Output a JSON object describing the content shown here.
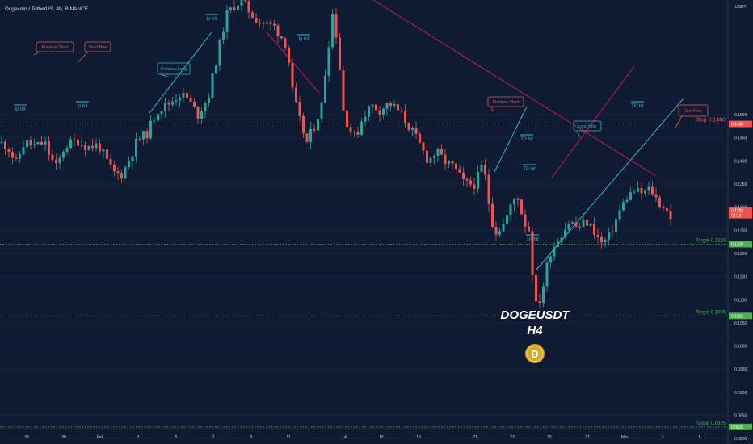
{
  "header": {
    "title": "Dogecoin / TetherUS, 4h, BINANCE",
    "axis_unit": "USDT"
  },
  "overlay": {
    "symbol": "DOGEUSDT",
    "timeframe": "H4",
    "coin_glyph": "Ð"
  },
  "colors": {
    "background": "#0f1b33",
    "up": "#26a69a",
    "down": "#ef5350",
    "trendline_teal": "#2bbcc4",
    "trendline_pink": "#c2185b",
    "stop": "#ef5350",
    "target": "#4caf50",
    "coin": "#d4a82a",
    "text": "#ffffff",
    "axis_text": "#cccccc"
  },
  "chart_data": {
    "type": "candlestick",
    "title": "Dogecoin / TetherUS, 4h, BINANCE",
    "y_unit": "USDT",
    "ylim": [
      0.0788,
      0.1748
    ],
    "y_ticks": [
      "0.1500",
      "0.1450",
      "0.1400",
      "0.1350",
      "0.1300",
      "0.1250",
      "0.1200",
      "0.1150",
      "0.1100",
      "0.1050",
      "0.1000",
      "0.0950",
      "0.0900",
      "0.0850",
      "0.0800"
    ],
    "x_ticks": [
      "28",
      "30",
      "Feb",
      "3",
      "5",
      "7",
      "9",
      "11",
      "14",
      "16",
      "18",
      "21",
      "23",
      "25",
      "27",
      "Mar",
      "3",
      "5"
    ],
    "price_levels": [
      {
        "name": "Stop",
        "label": "Stop 0.1480",
        "tag": "0.1480",
        "value": 0.148,
        "kind": "stop"
      },
      {
        "name": "Target",
        "label": "Target 0.1220",
        "tag": "0.1220",
        "value": 0.122,
        "kind": "target"
      },
      {
        "name": "Target",
        "label": "Target 0.1065",
        "tag": "0.1065",
        "value": 0.1065,
        "kind": "target"
      },
      {
        "name": "Target",
        "label": "Target 0.0825",
        "tag": "0.0825",
        "value": 0.0825,
        "kind": "target"
      }
    ],
    "current_price": {
      "value": 0.1293,
      "tag": "0.1293",
      "countdown": "02:13"
    },
    "annotations": [
      {
        "text": "Previous Short",
        "style": "short"
      },
      {
        "text": "Short Now",
        "style": "short"
      },
      {
        "text": "Previous Long",
        "style": "long"
      },
      {
        "text": "Previous Short",
        "style": "short"
      },
      {
        "text": "Long Now",
        "style": "long"
      },
      {
        "text": "Sort Now",
        "style": "short"
      }
    ],
    "tp_labels": [
      "tp hit",
      "tp hit",
      "tp hit",
      "tp hit",
      "TP hit",
      "TP hit",
      "TP hit",
      "TP hit"
    ],
    "anchors": [
      [
        0,
        0.144
      ],
      [
        10,
        0.143
      ],
      [
        20,
        0.1395
      ],
      [
        30,
        0.144
      ],
      [
        45,
        0.1432
      ],
      [
        55,
        0.144
      ],
      [
        62,
        0.141
      ],
      [
        70,
        0.1385
      ],
      [
        80,
        0.1432
      ],
      [
        95,
        0.1445
      ],
      [
        108,
        0.143
      ],
      [
        122,
        0.1435
      ],
      [
        132,
        0.14
      ],
      [
        140,
        0.1375
      ],
      [
        150,
        0.137
      ],
      [
        158,
        0.1395
      ],
      [
        170,
        0.1445
      ],
      [
        182,
        0.146
      ],
      [
        195,
        0.151
      ],
      [
        210,
        0.1525
      ],
      [
        222,
        0.1545
      ],
      [
        232,
        0.1535
      ],
      [
        245,
        0.15
      ],
      [
        258,
        0.154
      ],
      [
        268,
        0.162
      ],
      [
        280,
        0.1715
      ],
      [
        292,
        0.174
      ],
      [
        300,
        0.1745
      ],
      [
        310,
        0.172
      ],
      [
        322,
        0.17
      ],
      [
        340,
        0.169
      ],
      [
        355,
        0.165
      ],
      [
        362,
        0.155
      ],
      [
        372,
        0.148
      ],
      [
        380,
        0.144
      ],
      [
        390,
        0.148
      ],
      [
        398,
        0.152
      ],
      [
        405,
        0.163
      ],
      [
        412,
        0.1725
      ],
      [
        418,
        0.165
      ],
      [
        425,
        0.151
      ],
      [
        432,
        0.147
      ],
      [
        440,
        0.145
      ],
      [
        450,
        0.15
      ],
      [
        460,
        0.152
      ],
      [
        470,
        0.151
      ],
      [
        482,
        0.1525
      ],
      [
        495,
        0.1505
      ],
      [
        508,
        0.147
      ],
      [
        518,
        0.144
      ],
      [
        530,
        0.14
      ],
      [
        540,
        0.142
      ],
      [
        550,
        0.14
      ],
      [
        562,
        0.1385
      ],
      [
        575,
        0.135
      ],
      [
        588,
        0.135
      ],
      [
        598,
        0.1395
      ],
      [
        605,
        0.131
      ],
      [
        612,
        0.1245
      ],
      [
        622,
        0.126
      ],
      [
        632,
        0.13
      ],
      [
        640,
        0.133
      ],
      [
        648,
        0.127
      ],
      [
        655,
        0.125
      ],
      [
        660,
        0.114
      ],
      [
        664,
        0.108
      ],
      [
        670,
        0.111
      ],
      [
        680,
        0.12
      ],
      [
        692,
        0.1235
      ],
      [
        705,
        0.127
      ],
      [
        715,
        0.1255
      ],
      [
        725,
        0.127
      ],
      [
        735,
        0.125
      ],
      [
        745,
        0.122
      ],
      [
        755,
        0.124
      ],
      [
        765,
        0.1285
      ],
      [
        775,
        0.132
      ],
      [
        785,
        0.1335
      ],
      [
        795,
        0.133
      ],
      [
        805,
        0.134
      ],
      [
        815,
        0.131
      ],
      [
        822,
        0.13
      ],
      [
        830,
        0.128
      ]
    ]
  }
}
